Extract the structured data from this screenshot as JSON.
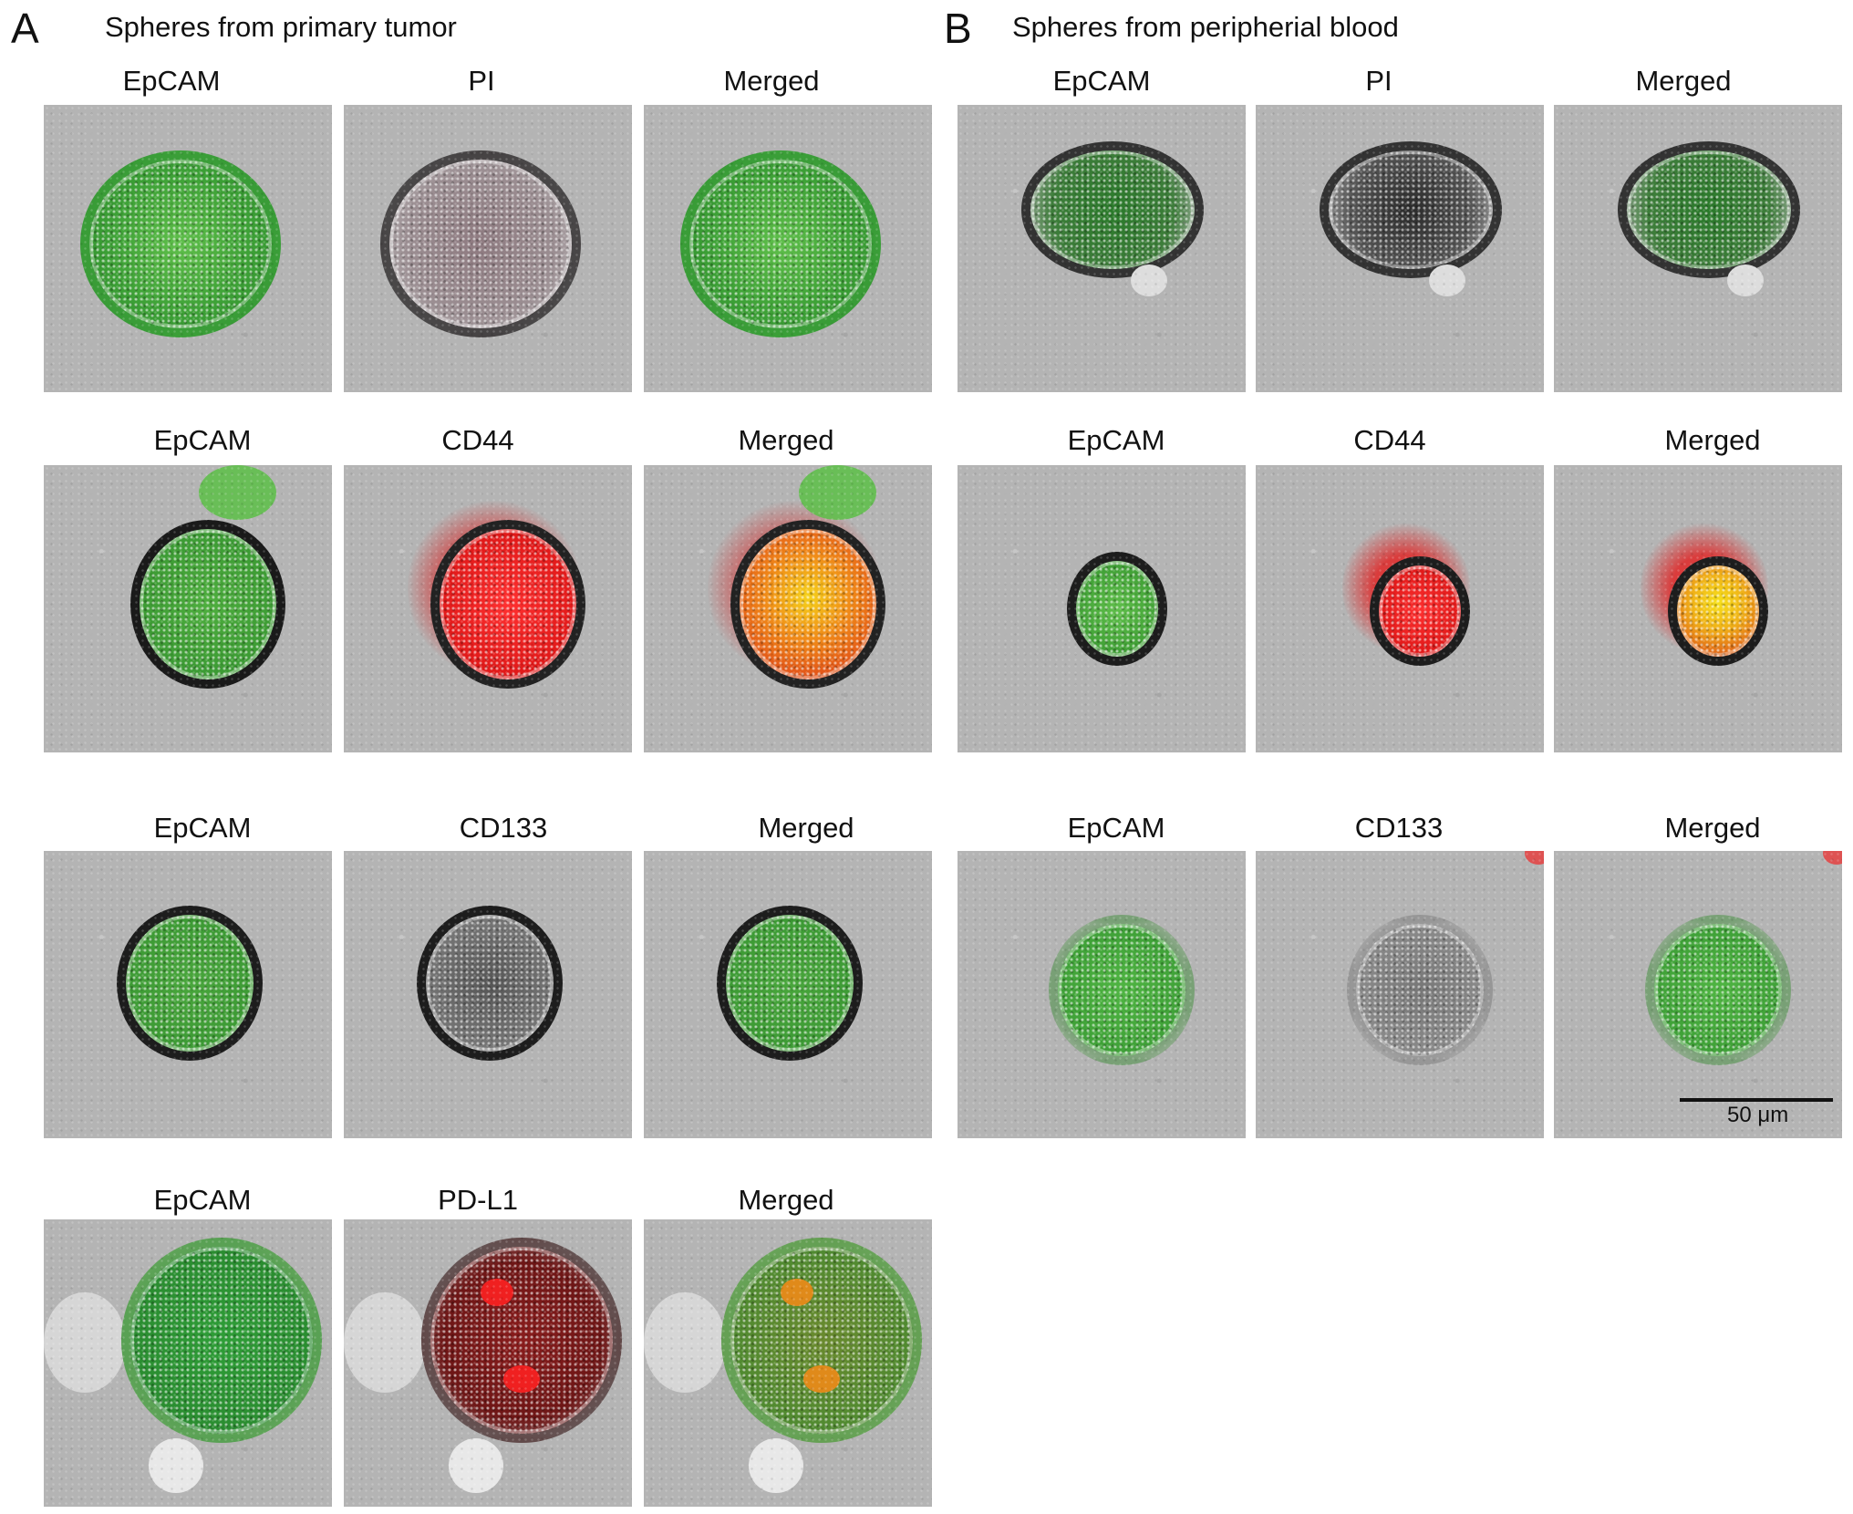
{
  "panelA": {
    "letter": "A",
    "title": "Spheres from primary tumor",
    "rows": [
      {
        "labels": [
          "EpCAM",
          "PI",
          "Merged"
        ]
      },
      {
        "labels": [
          "EpCAM",
          "CD44",
          "Merged"
        ]
      },
      {
        "labels": [
          "EpCAM",
          "CD133",
          "Merged"
        ]
      },
      {
        "labels": [
          "EpCAM",
          "PD-L1",
          "Merged"
        ]
      }
    ]
  },
  "panelB": {
    "letter": "B",
    "title": "Spheres from peripherial blood",
    "rows": [
      {
        "labels": [
          "EpCAM",
          "PI",
          "Merged"
        ]
      },
      {
        "labels": [
          "EpCAM",
          "CD44",
          "Merged"
        ]
      },
      {
        "labels": [
          "EpCAM",
          "CD133",
          "Merged"
        ]
      }
    ]
  },
  "scale_bar": {
    "label": "50 μm"
  },
  "colors": {
    "green_stain": "#3faa3a",
    "red_stain": "#e02020",
    "merged_orange": "#e08a1a",
    "background_gray": "#b4b4b4"
  }
}
